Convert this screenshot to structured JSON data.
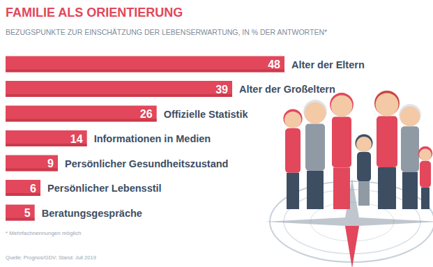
{
  "chart_data": {
    "type": "bar",
    "orientation": "horizontal",
    "title": "FAMILIE ALS ORIENTIERUNG",
    "subtitle": "BEZUGSPUNKTE ZUR EINSCHÄTZUNG DER LEBENSERWARTUNG, IN % DER ANTWORTEN*",
    "categories": [
      "Alter der Eltern",
      "Alter der Großeltern",
      "Offizielle Statistik",
      "Informationen in Medien",
      "Persönlicher Gesundheitszustand",
      "Persönlicher Lebensstil",
      "Beratungsgespräche"
    ],
    "values": [
      48,
      39,
      26,
      14,
      9,
      6,
      5
    ],
    "color": "#e2475b",
    "data_labels": true,
    "tick_labels": false,
    "grid": false,
    "footnote": "* Mehrfachnennungen möglich",
    "source": "Quelle: Prognos/GDV; Stand: Juli 2019"
  }
}
